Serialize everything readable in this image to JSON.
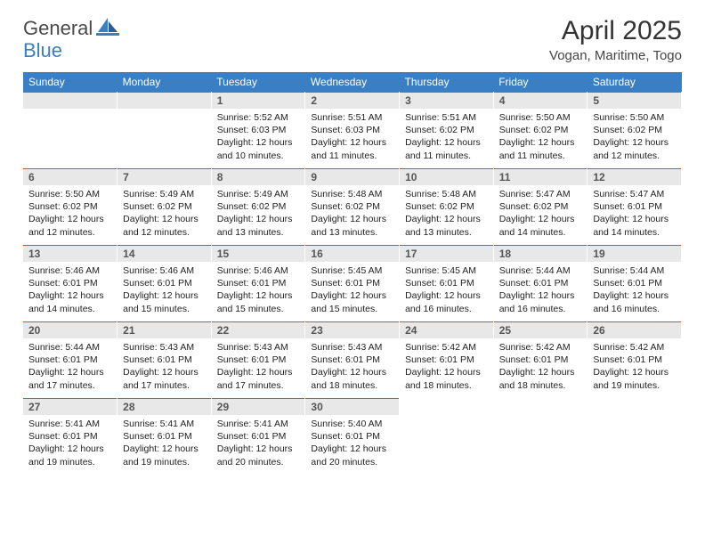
{
  "logo": {
    "part1": "General",
    "part2": "Blue"
  },
  "title": "April 2025",
  "subtitle": "Vogan, Maritime, Togo",
  "colors": {
    "header_bg": "#3a7fc4",
    "header_text": "#ffffff",
    "daynum_bg": "#e8e8e8",
    "daynum_text": "#555555",
    "border": "#3a7fc4",
    "body_text": "#222222"
  },
  "days_of_week": [
    "Sunday",
    "Monday",
    "Tuesday",
    "Wednesday",
    "Thursday",
    "Friday",
    "Saturday"
  ],
  "weeks": [
    [
      null,
      null,
      {
        "n": "1",
        "sr": "5:52 AM",
        "ss": "6:03 PM",
        "dl": "12 hours and 10 minutes."
      },
      {
        "n": "2",
        "sr": "5:51 AM",
        "ss": "6:03 PM",
        "dl": "12 hours and 11 minutes."
      },
      {
        "n": "3",
        "sr": "5:51 AM",
        "ss": "6:02 PM",
        "dl": "12 hours and 11 minutes."
      },
      {
        "n": "4",
        "sr": "5:50 AM",
        "ss": "6:02 PM",
        "dl": "12 hours and 11 minutes."
      },
      {
        "n": "5",
        "sr": "5:50 AM",
        "ss": "6:02 PM",
        "dl": "12 hours and 12 minutes."
      }
    ],
    [
      {
        "n": "6",
        "sr": "5:50 AM",
        "ss": "6:02 PM",
        "dl": "12 hours and 12 minutes."
      },
      {
        "n": "7",
        "sr": "5:49 AM",
        "ss": "6:02 PM",
        "dl": "12 hours and 12 minutes."
      },
      {
        "n": "8",
        "sr": "5:49 AM",
        "ss": "6:02 PM",
        "dl": "12 hours and 13 minutes."
      },
      {
        "n": "9",
        "sr": "5:48 AM",
        "ss": "6:02 PM",
        "dl": "12 hours and 13 minutes."
      },
      {
        "n": "10",
        "sr": "5:48 AM",
        "ss": "6:02 PM",
        "dl": "12 hours and 13 minutes."
      },
      {
        "n": "11",
        "sr": "5:47 AM",
        "ss": "6:02 PM",
        "dl": "12 hours and 14 minutes."
      },
      {
        "n": "12",
        "sr": "5:47 AM",
        "ss": "6:01 PM",
        "dl": "12 hours and 14 minutes."
      }
    ],
    [
      {
        "n": "13",
        "sr": "5:46 AM",
        "ss": "6:01 PM",
        "dl": "12 hours and 14 minutes."
      },
      {
        "n": "14",
        "sr": "5:46 AM",
        "ss": "6:01 PM",
        "dl": "12 hours and 15 minutes."
      },
      {
        "n": "15",
        "sr": "5:46 AM",
        "ss": "6:01 PM",
        "dl": "12 hours and 15 minutes."
      },
      {
        "n": "16",
        "sr": "5:45 AM",
        "ss": "6:01 PM",
        "dl": "12 hours and 15 minutes."
      },
      {
        "n": "17",
        "sr": "5:45 AM",
        "ss": "6:01 PM",
        "dl": "12 hours and 16 minutes."
      },
      {
        "n": "18",
        "sr": "5:44 AM",
        "ss": "6:01 PM",
        "dl": "12 hours and 16 minutes."
      },
      {
        "n": "19",
        "sr": "5:44 AM",
        "ss": "6:01 PM",
        "dl": "12 hours and 16 minutes."
      }
    ],
    [
      {
        "n": "20",
        "sr": "5:44 AM",
        "ss": "6:01 PM",
        "dl": "12 hours and 17 minutes."
      },
      {
        "n": "21",
        "sr": "5:43 AM",
        "ss": "6:01 PM",
        "dl": "12 hours and 17 minutes."
      },
      {
        "n": "22",
        "sr": "5:43 AM",
        "ss": "6:01 PM",
        "dl": "12 hours and 17 minutes."
      },
      {
        "n": "23",
        "sr": "5:43 AM",
        "ss": "6:01 PM",
        "dl": "12 hours and 18 minutes."
      },
      {
        "n": "24",
        "sr": "5:42 AM",
        "ss": "6:01 PM",
        "dl": "12 hours and 18 minutes."
      },
      {
        "n": "25",
        "sr": "5:42 AM",
        "ss": "6:01 PM",
        "dl": "12 hours and 18 minutes."
      },
      {
        "n": "26",
        "sr": "5:42 AM",
        "ss": "6:01 PM",
        "dl": "12 hours and 19 minutes."
      }
    ],
    [
      {
        "n": "27",
        "sr": "5:41 AM",
        "ss": "6:01 PM",
        "dl": "12 hours and 19 minutes."
      },
      {
        "n": "28",
        "sr": "5:41 AM",
        "ss": "6:01 PM",
        "dl": "12 hours and 19 minutes."
      },
      {
        "n": "29",
        "sr": "5:41 AM",
        "ss": "6:01 PM",
        "dl": "12 hours and 20 minutes."
      },
      {
        "n": "30",
        "sr": "5:40 AM",
        "ss": "6:01 PM",
        "dl": "12 hours and 20 minutes."
      },
      null,
      null,
      null
    ]
  ],
  "labels": {
    "sunrise": "Sunrise:",
    "sunset": "Sunset:",
    "daylight": "Daylight:"
  }
}
